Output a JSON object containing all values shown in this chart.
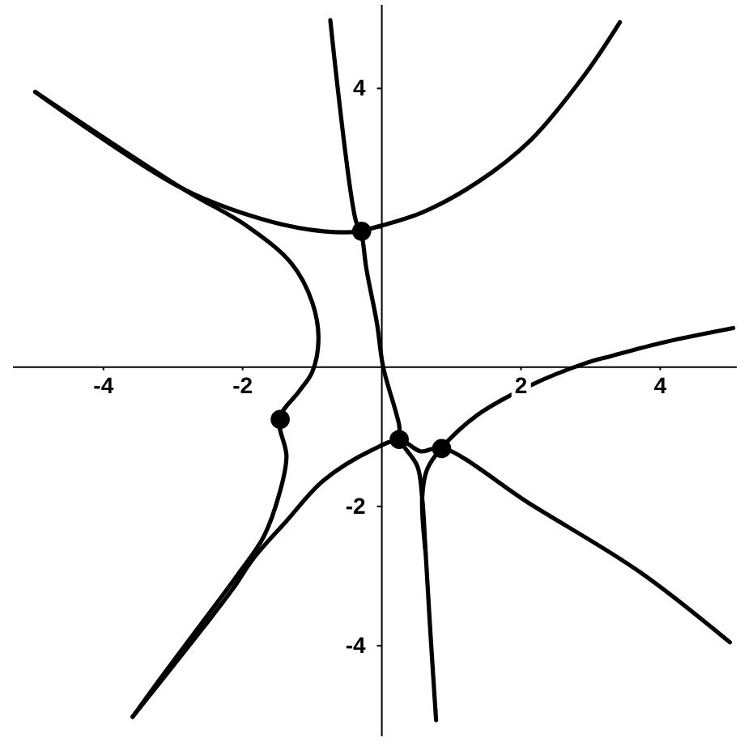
{
  "chart_data": {
    "type": "line",
    "xlim": [
      -5.3,
      5.1
    ],
    "ylim": [
      -5.3,
      5.2
    ],
    "xticks": [
      -4,
      -2,
      2,
      4
    ],
    "yticks": [
      -4,
      -2,
      {
        "value": 2,
        "label": null
      },
      4
    ],
    "series": [
      {
        "type": "line",
        "color": "#000000",
        "x": [
          -4.98,
          -2.86,
          -1.93,
          -1.3,
          -1.0,
          -0.91,
          -1.0,
          -1.19,
          -1.47,
          -1.37,
          -1.47,
          -1.7,
          -2.07,
          -2.53,
          -3.16,
          -3.58
        ],
        "values": [
          3.95,
          2.56,
          2.02,
          1.49,
          0.93,
          0.4,
          -0.07,
          -0.35,
          -0.74,
          -1.28,
          -1.81,
          -2.44,
          -2.98,
          -3.6,
          -4.44,
          -5.02
        ]
      },
      {
        "type": "line",
        "color": "#000000",
        "x": [
          -4.98,
          -2.86,
          -1.6,
          -0.84,
          -0.3,
          -0.19,
          0.58,
          1.37,
          2.14,
          2.91,
          3.42
        ],
        "values": [
          3.95,
          2.56,
          2.09,
          1.95,
          1.95,
          1.98,
          2.22,
          2.65,
          3.26,
          4.19,
          4.95
        ]
      },
      {
        "type": "line",
        "color": "#000000",
        "x": [
          -0.74,
          -0.37,
          -0.3,
          -0.22,
          -0.07,
          0.02,
          0.25,
          0.26,
          0.51,
          0.58,
          0.63,
          0.7,
          0.78
        ],
        "values": [
          4.98,
          2.09,
          1.95,
          1.4,
          0.63,
          0.0,
          -0.84,
          -1.04,
          -1.42,
          -1.88,
          -2.67,
          -3.84,
          -5.07
        ]
      },
      {
        "type": "line",
        "color": "#000000",
        "x": [
          -3.58,
          -2.16,
          -1.84,
          -1.37,
          -0.84,
          -0.14,
          0.26,
          0.56,
          0.86,
          2.14,
          3.69,
          5.0
        ],
        "values": [
          -5.02,
          -3.21,
          -2.74,
          -2.21,
          -1.63,
          -1.19,
          -1.05,
          -1.21,
          -1.16,
          -1.97,
          -2.93,
          -3.95
        ]
      },
      {
        "type": "line",
        "color": "#000000",
        "x": [
          0.63,
          0.58,
          0.65,
          0.86,
          1.37,
          2.14,
          2.91,
          3.3,
          4.07,
          5.05
        ],
        "values": [
          -2.67,
          -1.88,
          -1.47,
          -1.16,
          -0.69,
          -0.26,
          0.05,
          0.16,
          0.36,
          0.56
        ]
      },
      {
        "type": "scatter",
        "color": "#000000",
        "marker": "circle",
        "x": [
          -0.29,
          -1.46,
          0.25,
          0.86
        ],
        "values": [
          1.95,
          -0.75,
          -1.04,
          -1.17
        ]
      }
    ]
  }
}
